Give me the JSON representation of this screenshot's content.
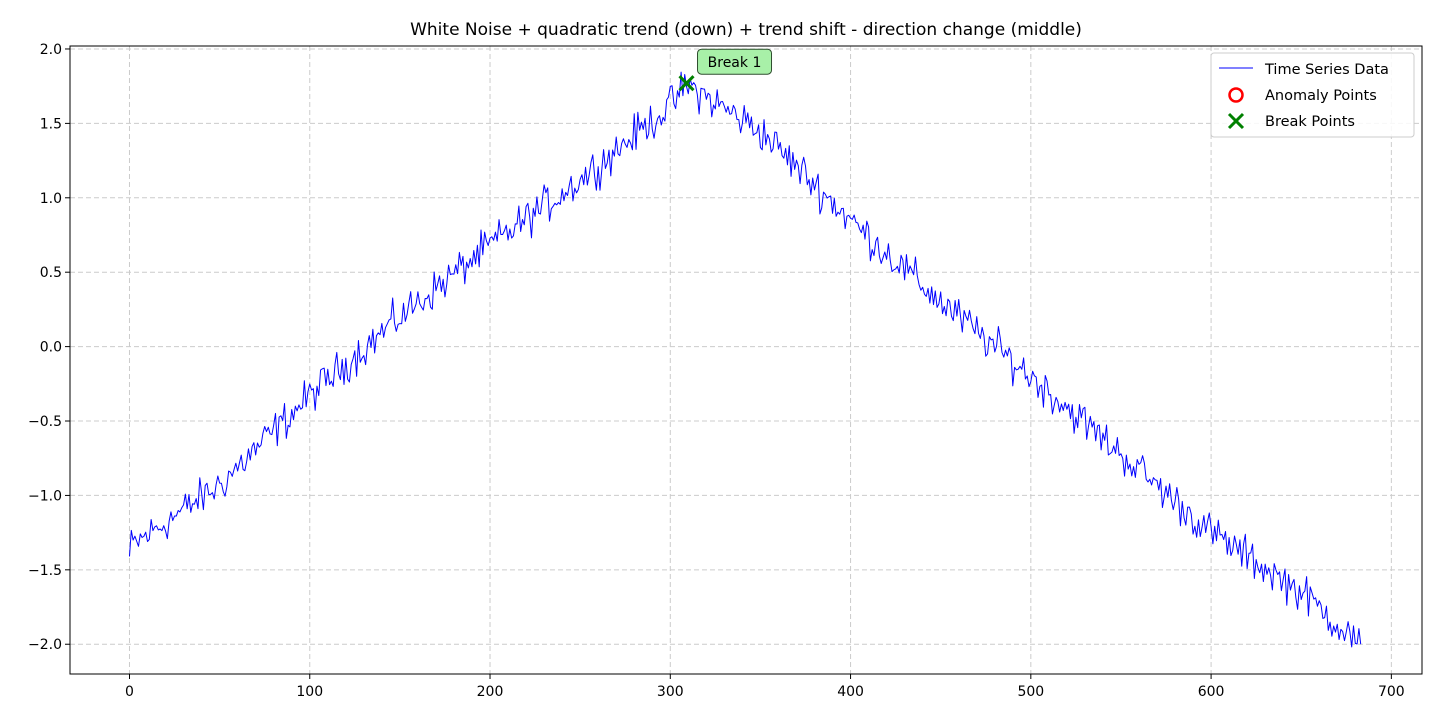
{
  "chart_data": {
    "type": "line",
    "title": "White Noise + quadratic trend (down) + trend shift - direction change (middle)",
    "xlabel": "",
    "ylabel": "",
    "xlim": [
      -33,
      717
    ],
    "ylim": [
      -2.2,
      2.02
    ],
    "x_ticks": [
      0,
      100,
      200,
      300,
      400,
      500,
      600,
      700
    ],
    "y_ticks": [
      -2.0,
      -1.5,
      -1.0,
      -0.5,
      0.0,
      0.5,
      1.0,
      1.5,
      2.0
    ],
    "x_tick_labels": [
      "0",
      "100",
      "200",
      "300",
      "400",
      "500",
      "600",
      "700"
    ],
    "y_tick_labels": [
      "−2.0",
      "−1.5",
      "−1.0",
      "−0.5",
      "0.0",
      "0.5",
      "1.0",
      "1.5",
      "2.0"
    ],
    "grid": true,
    "legend_position": "top-right",
    "series": [
      {
        "name": "Time Series Data",
        "color": "#0000ff",
        "x_start": 0,
        "x_step": 1,
        "profile": [
          [
            0,
            -1.35
          ],
          [
            50,
            -0.93
          ],
          [
            100,
            -0.33
          ],
          [
            150,
            0.2
          ],
          [
            200,
            0.68
          ],
          [
            250,
            1.12
          ],
          [
            300,
            1.62
          ],
          [
            309,
            1.76
          ],
          [
            350,
            1.45
          ],
          [
            400,
            0.85
          ],
          [
            450,
            0.3
          ],
          [
            500,
            -0.2
          ],
          [
            550,
            -0.72
          ],
          [
            600,
            -1.25
          ],
          [
            650,
            -1.65
          ],
          [
            683,
            -2.0
          ]
        ],
        "noise_amplitude": 0.09
      }
    ],
    "anomaly_points": {
      "name": "Anomaly Points",
      "color": "#ff0000",
      "points": []
    },
    "break_points": {
      "name": "Break Points",
      "color": "#008000",
      "points": [
        {
          "x": 309,
          "y": 1.77,
          "label": "Break 1"
        }
      ]
    }
  }
}
